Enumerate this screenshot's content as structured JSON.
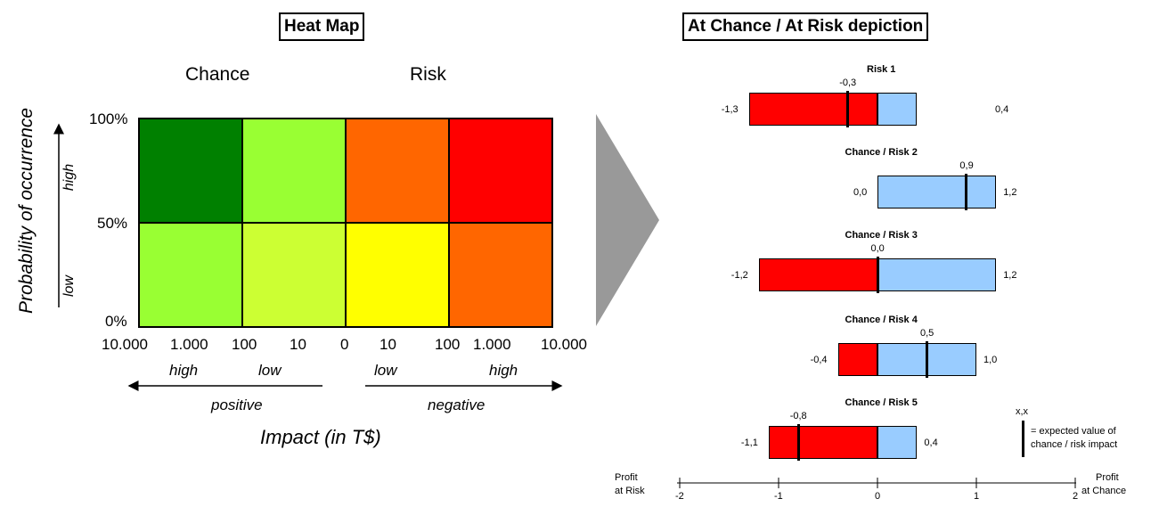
{
  "heatmap": {
    "title": "Heat Map",
    "chance_label": "Chance",
    "risk_label": "Risk",
    "y_axis_label": "Probability of occurrence",
    "y_high": "high",
    "y_low": "low",
    "y_ticks": [
      "100%",
      "50%",
      "0%"
    ],
    "x_ticks": [
      "10.000",
      "1.000",
      "100",
      "10",
      "0",
      "10",
      "100",
      "1.000",
      "10.000"
    ],
    "x_sub": [
      "high",
      "low",
      "low",
      "high"
    ],
    "dir_positive": "positive",
    "dir_negative": "negative",
    "x_axis_label": "Impact (in T$)",
    "cell_colors": [
      [
        "#008000",
        "#99ff33",
        "#ff6600",
        "#ff0000"
      ],
      [
        "#99ff33",
        "#ccff33",
        "#ffff00",
        "#ff6600"
      ]
    ]
  },
  "depiction": {
    "title": "At Chance / At Risk depiction",
    "colors": {
      "risk": "#ff0000",
      "chance": "#99ccff",
      "marker": "#000000"
    },
    "legend_value": "x,x",
    "legend_text_1": "= expected value of",
    "legend_text_2": "chance / risk impact",
    "axis_left_1": "Profit",
    "axis_left_2": "at Risk",
    "axis_right_1": "Profit",
    "axis_right_2": "at Chance",
    "axis_ticks": [
      "-2",
      "-1",
      "0",
      "1",
      "2"
    ]
  },
  "chart_data": {
    "type": "bar",
    "xlim": [
      -2,
      2
    ],
    "categories": [
      "Risk 1",
      "Chance / Risk 2",
      "Chance / Risk 3",
      "Chance / Risk 4",
      "Chance / Risk 5"
    ],
    "series": [
      {
        "name": "",
        "values": [
          -1.3,
          0.0,
          -1.2,
          -0.4,
          -1.1
        ]
      },
      {
        "name": "",
        "values": [
          0.4,
          1.2,
          1.2,
          1.0,
          0.4
        ]
      }
    ],
    "expected_values": [
      -0.3,
      0.9,
      0.0,
      0.5,
      -0.8
    ],
    "labels": {
      "min": [
        "-1,3",
        "0,0",
        "-1,2",
        "-0,4",
        "-1,1"
      ],
      "max": [
        "0,4",
        "1,2",
        "1,2",
        "1,0",
        "0,4"
      ],
      "expected": [
        "-0,3",
        "0,9",
        "0,0",
        "0,5",
        "-0,8"
      ]
    }
  }
}
